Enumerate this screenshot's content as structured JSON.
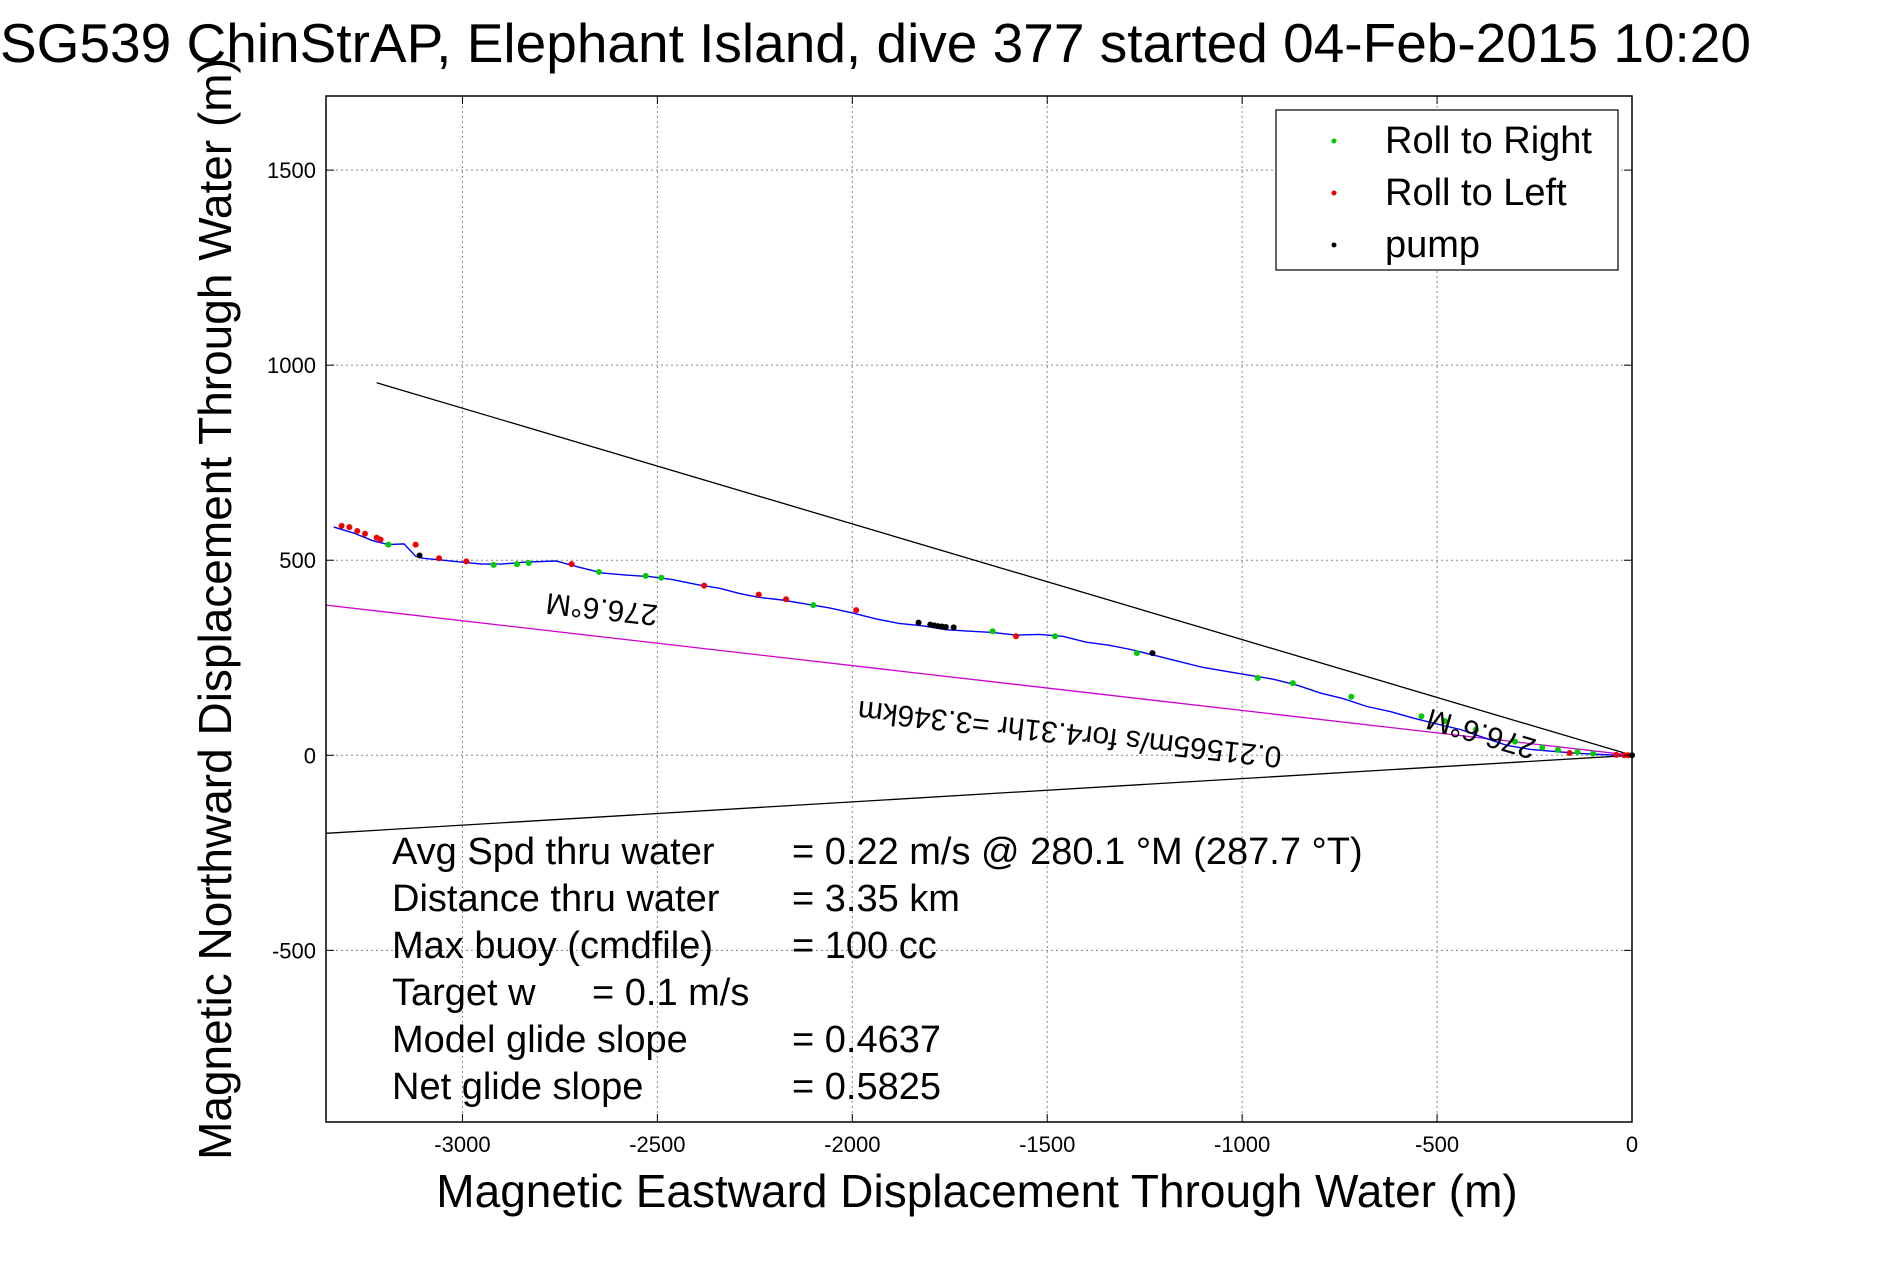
{
  "chart_data": {
    "type": "scatter",
    "title": "SG539 ChinStrAP, Elephant Island, dive 377 started 04-Feb-2015 10:20",
    "xlabel": "Magnetic Eastward Displacement Through Water (m)",
    "ylabel": "Magnetic Northward Displacement Through Water (m)",
    "xlim": [
      -3350,
      0
    ],
    "ylim": [
      -940,
      1690
    ],
    "x_ticks": [
      {
        "value": -3000,
        "label": "-3000"
      },
      {
        "value": -2500,
        "label": "-2500"
      },
      {
        "value": -2000,
        "label": "-2000"
      },
      {
        "value": -1500,
        "label": "-1500"
      },
      {
        "value": -1000,
        "label": "-1000"
      },
      {
        "value": -500,
        "label": "-500"
      },
      {
        "value": 0,
        "label": "0"
      }
    ],
    "y_ticks": [
      {
        "value": 1500,
        "label": "1500"
      },
      {
        "value": 1000,
        "label": "1000"
      },
      {
        "value": 500,
        "label": "500"
      },
      {
        "value": 0,
        "label": "0"
      },
      {
        "value": -500,
        "label": "-500"
      }
    ],
    "grid": true,
    "legend_position": "top-right",
    "legend": [
      {
        "label": "Roll to Right",
        "color": "#00cc00"
      },
      {
        "label": "Roll to Left",
        "color": "#ee0000"
      },
      {
        "label": "pump",
        "color": "#000000"
      }
    ],
    "colors": {
      "track": "#0000ff",
      "roll_right": "#00cc00",
      "roll_left": "#ee0000",
      "pump": "#000000",
      "current_line": "#cc00cc",
      "cone_lines": "#000000",
      "grid": "#888888"
    },
    "track": {
      "x": [
        -3330,
        -3280,
        -3230,
        -3190,
        -3150,
        -3120,
        -3100,
        -3050,
        -3000,
        -2950,
        -2900,
        -2840,
        -2760,
        -2700,
        -2640,
        -2580,
        -2520,
        -2460,
        -2400,
        -2340,
        -2290,
        -2240,
        -2180,
        -2120,
        -2060,
        -2000,
        -1940,
        -1880,
        -1820,
        -1760,
        -1700,
        -1640,
        -1580,
        -1520,
        -1460,
        -1400,
        -1340,
        -1280,
        -1220,
        -1160,
        -1100,
        -1040,
        -980,
        -920,
        -860,
        -800,
        -740,
        -680,
        -620,
        -560,
        -500,
        -440,
        -380,
        -320,
        -260,
        -200,
        -140,
        -80,
        -30,
        0
      ],
      "y": [
        585,
        570,
        550,
        540,
        542,
        510,
        505,
        500,
        495,
        490,
        490,
        495,
        498,
        482,
        467,
        462,
        458,
        450,
        438,
        428,
        415,
        405,
        398,
        388,
        378,
        365,
        350,
        338,
        332,
        322,
        318,
        315,
        308,
        310,
        305,
        290,
        282,
        270,
        255,
        240,
        225,
        215,
        205,
        195,
        180,
        160,
        145,
        125,
        112,
        95,
        80,
        66,
        45,
        25,
        15,
        10,
        5,
        2,
        0,
        0
      ]
    },
    "roll_right": {
      "x": [
        -3190,
        -2920,
        -2860,
        -2830,
        -2650,
        -2530,
        -2490,
        -2100,
        -1640,
        -1480,
        -1270,
        -960,
        -870,
        -720,
        -540,
        -480,
        -400,
        -300,
        -230,
        -190,
        -140,
        -100
      ],
      "y": [
        540,
        488,
        490,
        493,
        470,
        460,
        455,
        385,
        318,
        305,
        262,
        198,
        185,
        150,
        100,
        88,
        66,
        35,
        20,
        14,
        8,
        4
      ]
    },
    "roll_left": {
      "x": [
        -3310,
        -3290,
        -3270,
        -3250,
        -3220,
        -3210,
        -3120,
        -3060,
        -2990,
        -2720,
        -2380,
        -2240,
        -2170,
        -1990,
        -1580,
        -160,
        -40,
        -20,
        -10
      ],
      "y": [
        588,
        585,
        575,
        568,
        558,
        553,
        540,
        505,
        497,
        490,
        435,
        412,
        400,
        372,
        305,
        6,
        1,
        0,
        0
      ]
    },
    "pump": {
      "x": [
        -3110,
        -1830,
        -1800,
        -1790,
        -1780,
        -1770,
        -1760,
        -1740,
        -1230,
        0
      ],
      "y": [
        512,
        340,
        335,
        333,
        331,
        330,
        329,
        328,
        262,
        0
      ]
    },
    "current_line": {
      "x": [
        -3350,
        0
      ],
      "y": [
        385,
        0
      ]
    },
    "cone_lines": [
      {
        "x": [
          -3220,
          0
        ],
        "y": [
          955,
          0
        ]
      },
      {
        "x": [
          -3350,
          0
        ],
        "y": [
          -200,
          0
        ]
      }
    ],
    "annotations": [
      {
        "text": "276.6°M",
        "x": -2640,
        "y": 400,
        "rotation": 186.3
      },
      {
        "text": "0.21565m/s for4.31hr =3.346km",
        "x": -1440,
        "y": 80,
        "rotation": 186.3
      },
      {
        "text": "276.6°M",
        "x": -380,
        "y": 80,
        "rotation": 196.3
      }
    ],
    "stats": [
      {
        "label": "Avg Spd thru water",
        "value": "=  0.22 m/s @ 280.1 °M (287.7 °T)"
      },
      {
        "label": "Distance thru water",
        "value": "=  3.35 km"
      },
      {
        "label": "Max buoy (cmdfile)",
        "value": "= 100 cc"
      },
      {
        "label": "Target w",
        "value": "= 0.1 m/s"
      },
      {
        "label": "Model glide slope",
        "value": "= 0.4637"
      },
      {
        "label": "Net glide slope",
        "value": "= 0.5825"
      }
    ]
  }
}
